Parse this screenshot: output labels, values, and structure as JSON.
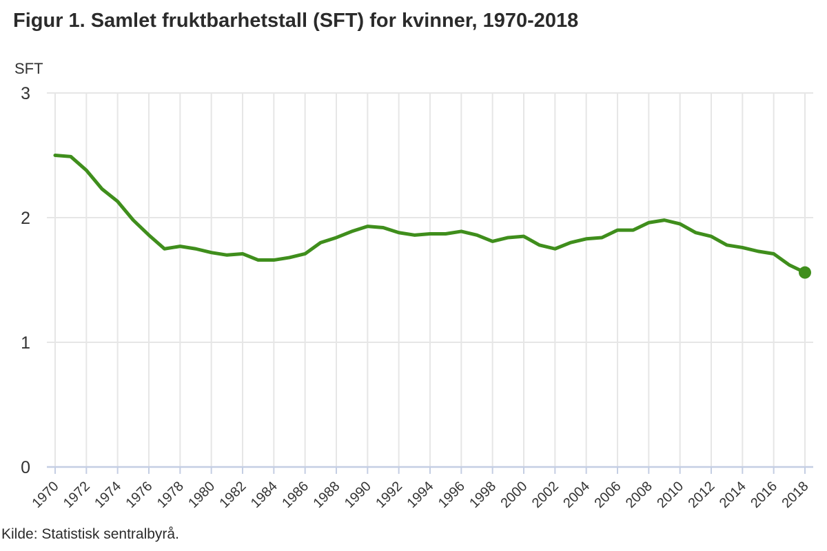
{
  "page": {
    "title": "Figur 1. Samlet fruktbarhetstall (SFT) for kvinner, 1970-2018",
    "y_axis_title": "SFT",
    "source": "Kilde: Statistisk sentralbyrå."
  },
  "chart_data": {
    "type": "line",
    "title": "Figur 1. Samlet fruktbarhetstall (SFT) for kvinner, 1970-2018",
    "xlabel": "",
    "ylabel": "SFT",
    "ylim": [
      0,
      3
    ],
    "yticks": [
      0,
      1,
      2,
      3
    ],
    "xticks": [
      1970,
      1972,
      1974,
      1976,
      1978,
      1980,
      1982,
      1984,
      1986,
      1988,
      1990,
      1992,
      1994,
      1996,
      1998,
      2000,
      2002,
      2004,
      2006,
      2008,
      2010,
      2012,
      2014,
      2016,
      2018
    ],
    "grid": true,
    "legend": "none",
    "end_point_marker": true,
    "colors": {
      "line": "#3f8e1c",
      "grid": "#e6e6e6",
      "axis": "#c4cee3",
      "tick_text": "#333333",
      "title_text": "#2b2b2b"
    },
    "series": [
      {
        "name": "SFT",
        "x": [
          1970,
          1971,
          1972,
          1973,
          1974,
          1975,
          1976,
          1977,
          1978,
          1979,
          1980,
          1981,
          1982,
          1983,
          1984,
          1985,
          1986,
          1987,
          1988,
          1989,
          1990,
          1991,
          1992,
          1993,
          1994,
          1995,
          1996,
          1997,
          1998,
          1999,
          2000,
          2001,
          2002,
          2003,
          2004,
          2005,
          2006,
          2007,
          2008,
          2009,
          2010,
          2011,
          2012,
          2013,
          2014,
          2015,
          2016,
          2017,
          2018
        ],
        "values": [
          2.5,
          2.49,
          2.38,
          2.23,
          2.13,
          1.98,
          1.86,
          1.75,
          1.77,
          1.75,
          1.72,
          1.7,
          1.71,
          1.66,
          1.66,
          1.68,
          1.71,
          1.8,
          1.84,
          1.89,
          1.93,
          1.92,
          1.88,
          1.86,
          1.87,
          1.87,
          1.89,
          1.86,
          1.81,
          1.84,
          1.85,
          1.78,
          1.75,
          1.8,
          1.83,
          1.84,
          1.9,
          1.9,
          1.96,
          1.98,
          1.95,
          1.88,
          1.85,
          1.78,
          1.76,
          1.73,
          1.71,
          1.62,
          1.56
        ]
      }
    ]
  }
}
